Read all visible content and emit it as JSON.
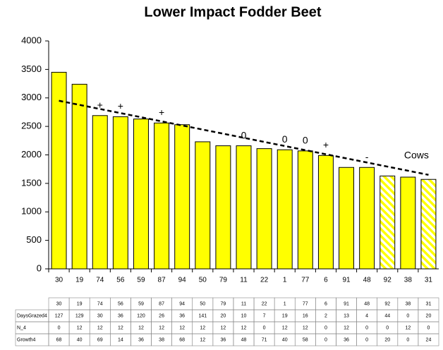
{
  "chart_data": {
    "type": "bar",
    "title": "Lower Impact Fodder Beet",
    "categories": [
      "30",
      "19",
      "74",
      "56",
      "59",
      "87",
      "94",
      "50",
      "79",
      "11",
      "22",
      "1",
      "77",
      "6",
      "91",
      "48",
      "92",
      "38",
      "31"
    ],
    "values": [
      3450,
      3240,
      2690,
      2670,
      2630,
      2560,
      2530,
      2230,
      2160,
      2160,
      2110,
      2090,
      2070,
      1990,
      1780,
      1780,
      1630,
      1610,
      1570
    ],
    "hatched": [
      false,
      false,
      false,
      false,
      false,
      false,
      false,
      false,
      false,
      false,
      false,
      false,
      false,
      false,
      false,
      false,
      true,
      false,
      true
    ],
    "color": "#ffff00",
    "ylim": [
      0,
      4000
    ],
    "yticks": [
      0,
      500,
      1000,
      1500,
      2000,
      2500,
      3000,
      3500,
      4000
    ],
    "trendline": [
      2950,
      1650
    ],
    "annotations": [
      {
        "text": "+",
        "category": "74"
      },
      {
        "text": "+",
        "category": "56"
      },
      {
        "text": "+",
        "category": "87"
      },
      {
        "text": "0",
        "category": "11"
      },
      {
        "text": "0",
        "category": "1"
      },
      {
        "text": "0",
        "category": "77"
      },
      {
        "text": "+",
        "category": "6"
      },
      {
        "text": "-",
        "category": "48"
      },
      {
        "text": "Cows",
        "category": "38"
      }
    ],
    "table": {
      "rows": [
        {
          "name": "DaysGrazed4",
          "values": [
            127,
            129,
            30,
            36,
            120,
            26,
            36,
            141,
            20,
            10,
            7,
            19,
            16,
            2,
            13,
            4,
            44,
            0,
            20
          ]
        },
        {
          "name": "N_4",
          "values": [
            0,
            12,
            12,
            12,
            12,
            12,
            12,
            12,
            12,
            12,
            0,
            12,
            12,
            0,
            12,
            0,
            0,
            12,
            0
          ]
        },
        {
          "name": "Growth4",
          "values": [
            68,
            40,
            69,
            14,
            36,
            38,
            68,
            12,
            36,
            48,
            71,
            40,
            58,
            0,
            36,
            0,
            20,
            0,
            24
          ]
        }
      ]
    }
  }
}
